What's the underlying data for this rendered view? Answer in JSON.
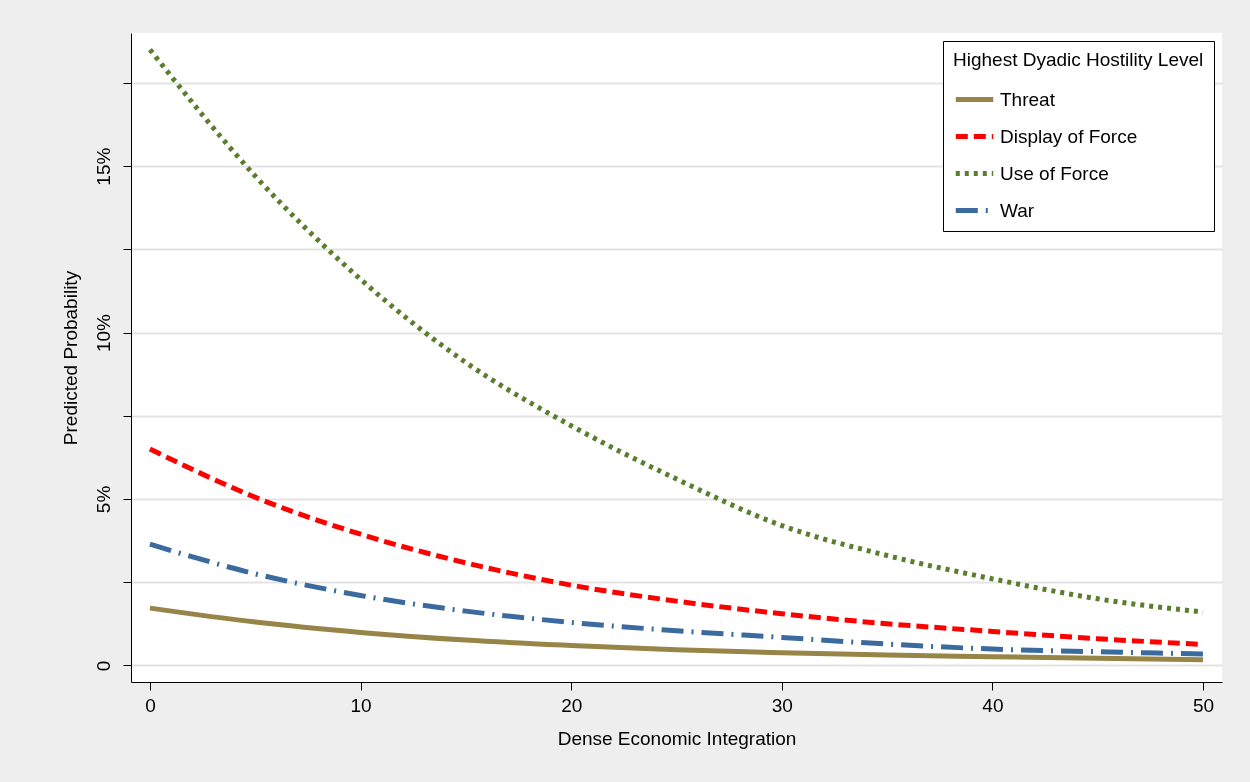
{
  "chart_data": {
    "type": "line",
    "xlabel": "Dense Economic Integration",
    "ylabel": "Predicted Probability",
    "legend_title": "Highest Dyadic Hostility Level",
    "x": [
      0,
      5,
      10,
      15,
      20,
      25,
      30,
      35,
      40,
      45,
      50
    ],
    "series": [
      {
        "name": "Threat",
        "color": "#978548",
        "line_style": "solid",
        "values": [
          1.72,
          1.3,
          0.99,
          0.76,
          0.6,
          0.47,
          0.38,
          0.31,
          0.26,
          0.21,
          0.17
        ]
      },
      {
        "name": "Display of Force",
        "color": "#ff0000",
        "line_style": "dashed",
        "values": [
          6.5,
          5.05,
          3.94,
          3.08,
          2.41,
          1.93,
          1.55,
          1.25,
          1.02,
          0.8,
          0.63
        ]
      },
      {
        "name": "Use of Force",
        "color": "#5a7d2e",
        "line_style": "dotted",
        "values": [
          18.5,
          14.7,
          11.6,
          9.1,
          7.2,
          5.6,
          4.2,
          3.3,
          2.6,
          2.0,
          1.6
        ]
      },
      {
        "name": "War",
        "color": "#3a6a9e",
        "line_style": "dashdot",
        "values": [
          3.64,
          2.75,
          2.1,
          1.63,
          1.29,
          1.04,
          0.84,
          0.64,
          0.49,
          0.41,
          0.34
        ]
      }
    ],
    "xlim": [
      -0.9,
      50.9
    ],
    "xticks": [
      0,
      10,
      20,
      30,
      40,
      50
    ],
    "ylim": [
      -0.5,
      19
    ],
    "yticks": [
      0,
      {
        "value": 2.5,
        "label": null
      },
      {
        "value": 5,
        "label": "5%"
      },
      {
        "value": 7.5,
        "label": null
      },
      {
        "value": 10,
        "label": "10%"
      },
      {
        "value": 12.5,
        "label": null
      },
      {
        "value": 15,
        "label": "15%"
      },
      {
        "value": 17.5,
        "label": null
      }
    ],
    "grid": "y",
    "legend": "top right",
    "marker": "none"
  }
}
